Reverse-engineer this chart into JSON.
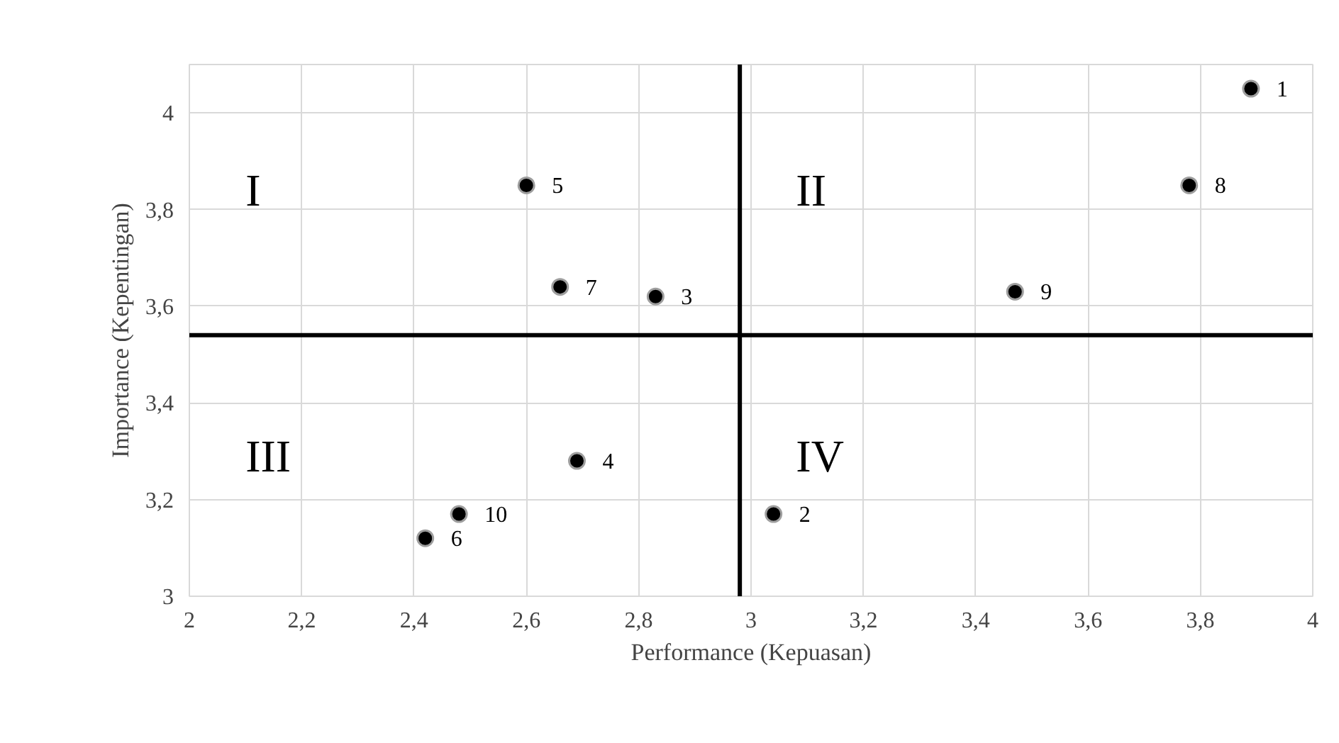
{
  "chart_data": {
    "type": "scatter",
    "xlabel": "Performance (Kepuasan)",
    "ylabel": "Importance (Kepentingan)",
    "series": [
      {
        "color": "#000000",
        "x": [
          3.89,
          3.04,
          2.83,
          2.69,
          2.6,
          2.42,
          2.66,
          3.78,
          3.47,
          2.48
        ],
        "values": [
          4.05,
          3.17,
          3.62,
          3.28,
          3.85,
          3.12,
          3.64,
          3.85,
          3.63,
          3.17
        ]
      }
    ],
    "marker": "circle",
    "grid": true,
    "xlim": [
      2,
      4
    ],
    "xticks": [
      2,
      {
        "value": 2.2,
        "label": "2,2"
      },
      {
        "value": 2.4,
        "label": "2,4"
      },
      {
        "value": 2.6,
        "label": "2,6"
      },
      {
        "value": 2.8,
        "label": "2,8"
      },
      3,
      {
        "value": 3.2,
        "label": "3,2"
      },
      {
        "value": 3.4,
        "label": "3,4"
      },
      {
        "value": 3.6,
        "label": "3,6"
      },
      {
        "value": 3.8,
        "label": "3,8"
      },
      4
    ],
    "ylim": [
      3,
      4.1
    ],
    "yticks": [
      3,
      {
        "value": 3.2,
        "label": "3,2"
      },
      {
        "value": 3.4,
        "label": "3,4"
      },
      {
        "value": 3.6,
        "label": "3,6"
      },
      {
        "value": 3.8,
        "label": "3,8"
      },
      4
    ],
    "ref_lines": [
      {
        "axis": "x",
        "value": 2.98,
        "color": "#000000"
      },
      {
        "axis": "y",
        "value": 3.54,
        "color": "#000000"
      }
    ],
    "annotations": [
      "I",
      "II",
      "III",
      "IV",
      {
        "text": "1",
        "x": 3.89,
        "y": 4.05
      },
      {
        "text": "2",
        "x": 3.04,
        "y": 3.17
      },
      {
        "text": "3",
        "x": 2.83,
        "y": 3.62
      },
      {
        "text": "4",
        "x": 2.69,
        "y": 3.28
      },
      {
        "text": "5",
        "x": 2.6,
        "y": 3.85
      },
      {
        "text": "6",
        "x": 2.42,
        "y": 3.12
      },
      {
        "text": "7",
        "x": 2.66,
        "y": 3.64
      },
      {
        "text": "8",
        "x": 3.78,
        "y": 3.85
      },
      {
        "text": "9",
        "x": 3.47,
        "y": 3.63
      },
      {
        "text": "10",
        "x": 2.48,
        "y": 3.17
      }
    ]
  }
}
